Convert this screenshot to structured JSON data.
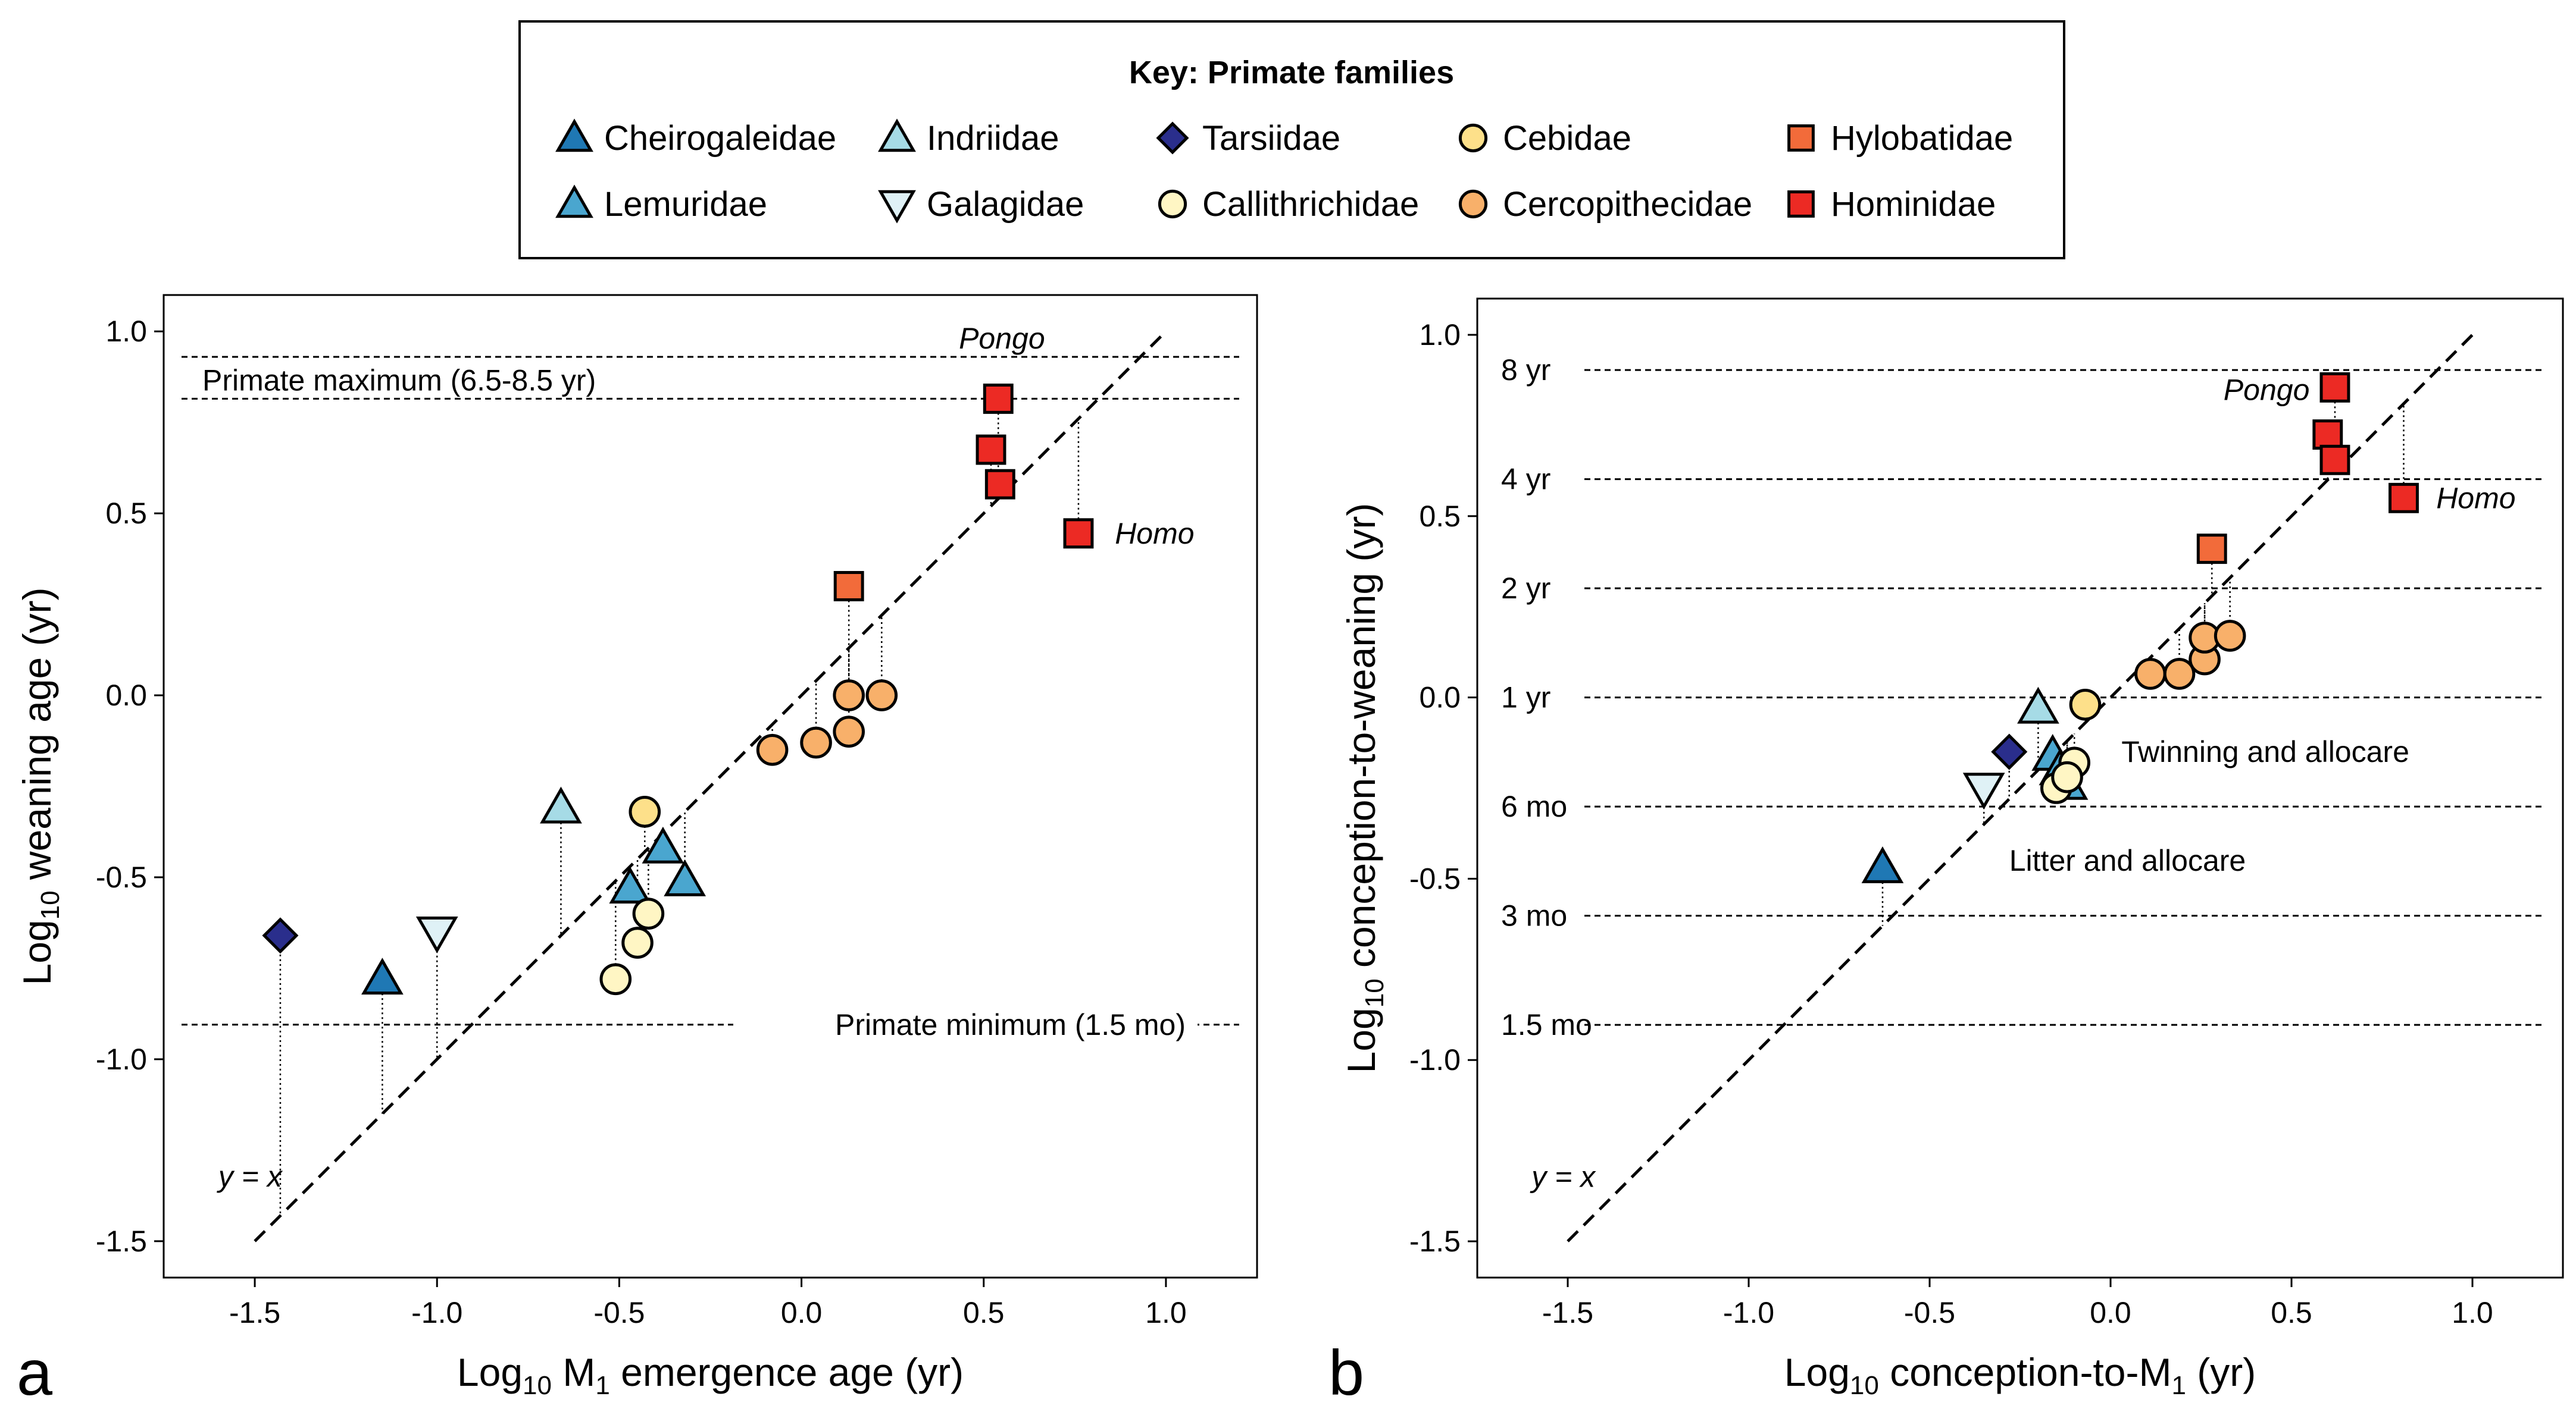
{
  "legend": {
    "title": "Key:  Primate families",
    "entries": [
      {
        "name": "Cheirogaleidae",
        "marker": "triangle-up",
        "color": "#1f78b4"
      },
      {
        "name": "Indriidae",
        "marker": "triangle-up",
        "color": "#a6dbe6"
      },
      {
        "name": "Tarsiidae",
        "marker": "diamond",
        "color": "#2a2e8c"
      },
      {
        "name": "Cebidae",
        "marker": "circle",
        "color": "#fde08a"
      },
      {
        "name": "Hylobatidae",
        "marker": "square",
        "color": "#f26b3a"
      },
      {
        "name": "Lemuridae",
        "marker": "triangle-up",
        "color": "#4aa6cf"
      },
      {
        "name": "Galagidae",
        "marker": "triangle-down",
        "color": "#dff1f6"
      },
      {
        "name": "Callithrichidae",
        "marker": "circle",
        "color": "#fff6c4"
      },
      {
        "name": "Cercopithecidae",
        "marker": "circle",
        "color": "#f8b06a"
      },
      {
        "name": "Hominidae",
        "marker": "square",
        "color": "#ec2a24"
      }
    ]
  },
  "chart_data": [
    {
      "type": "scatter",
      "panel": "a",
      "xlabel": "Log10 M1 emergence age (yr)",
      "ylabel": "Log10 weaning age (yr)",
      "xlim": [
        -1.75,
        1.25
      ],
      "ylim": [
        -1.6,
        1.1
      ],
      "xticks": [
        -1.5,
        -1.0,
        -0.5,
        0.0,
        0.5,
        1.0
      ],
      "xtick_labels": [
        "-1.5",
        "-1.0",
        "-0.5",
        "0.0",
        "0.5",
        "1.0"
      ],
      "yticks": [
        -1.5,
        -1.0,
        -0.5,
        0.0,
        0.5,
        1.0
      ],
      "ytick_labels": [
        "-1.5",
        "-1.0",
        "-0.5",
        "0.0",
        "0.5",
        "1.0"
      ],
      "identity_line": {
        "from": -1.5,
        "to": 1.0,
        "label": "y = x"
      },
      "hlines": [
        {
          "y": 0.93,
          "label": ""
        },
        {
          "y": 0.815,
          "label": "Primate maximum (6.5-8.5 yr)"
        },
        {
          "y": -0.905,
          "label": "Primate minimum (1.5 mo)"
        }
      ],
      "annotations": [
        "Pongo",
        "Homo"
      ],
      "points": [
        {
          "family": "Tarsiidae",
          "x": -1.43,
          "y": -0.66
        },
        {
          "family": "Cheirogaleidae",
          "x": -1.15,
          "y": -0.78
        },
        {
          "family": "Galagidae",
          "x": -1.0,
          "y": -0.65
        },
        {
          "family": "Indriidae",
          "x": -0.66,
          "y": -0.31
        },
        {
          "family": "Lemuridae",
          "x": -0.47,
          "y": -0.53
        },
        {
          "family": "Lemuridae",
          "x": -0.38,
          "y": -0.42
        },
        {
          "family": "Lemuridae",
          "x": -0.32,
          "y": -0.51
        },
        {
          "family": "Cebidae",
          "x": -0.43,
          "y": -0.32
        },
        {
          "family": "Callithrichidae",
          "x": -0.51,
          "y": -0.78
        },
        {
          "family": "Callithrichidae",
          "x": -0.45,
          "y": -0.68
        },
        {
          "family": "Callithrichidae",
          "x": -0.42,
          "y": -0.6
        },
        {
          "family": "Cercopithecidae",
          "x": -0.08,
          "y": -0.15
        },
        {
          "family": "Cercopithecidae",
          "x": 0.04,
          "y": -0.13
        },
        {
          "family": "Cercopithecidae",
          "x": 0.13,
          "y": -0.1
        },
        {
          "family": "Cercopithecidae",
          "x": 0.13,
          "y": 0.0
        },
        {
          "family": "Cercopithecidae",
          "x": 0.22,
          "y": 0.0
        },
        {
          "family": "Hylobatidae",
          "x": 0.13,
          "y": 0.3
        },
        {
          "family": "Hominidae",
          "x": 0.54,
          "y": 0.815
        },
        {
          "family": "Hominidae",
          "x": 0.52,
          "y": 0.675
        },
        {
          "family": "Hominidae",
          "x": 0.545,
          "y": 0.58
        },
        {
          "family": "Hominidae",
          "x": 0.76,
          "y": 0.445
        }
      ]
    },
    {
      "type": "scatter",
      "panel": "b",
      "xlabel": "Log10 conception-to-M1 (yr)",
      "ylabel": "Log10 conception-to-weaning (yr)",
      "xlim": [
        -1.75,
        1.25
      ],
      "ylim": [
        -1.6,
        1.1
      ],
      "xticks": [
        -1.5,
        -1.0,
        -0.5,
        0.0,
        0.5,
        1.0
      ],
      "xtick_labels": [
        "-1.5",
        "-1.0",
        "-0.5",
        "0.0",
        "0.5",
        "1.0"
      ],
      "yticks": [
        -1.5,
        -1.0,
        -0.5,
        0.0,
        0.5,
        1.0
      ],
      "ytick_labels": [
        "-1.5",
        "-1.0",
        "-0.5",
        "0.0",
        "0.5",
        "1.0"
      ],
      "identity_line": {
        "from": -1.5,
        "to": 1.0,
        "label": "y = x"
      },
      "hlines": [
        {
          "y": 0.903,
          "label": "8 yr"
        },
        {
          "y": 0.602,
          "label": "4 yr"
        },
        {
          "y": 0.301,
          "label": "2 yr"
        },
        {
          "y": 0.0,
          "label": "1 yr"
        },
        {
          "y": -0.301,
          "label": "6 mo"
        },
        {
          "y": -0.602,
          "label": "3 mo"
        },
        {
          "y": -0.903,
          "label": "1.5 mo"
        }
      ],
      "annotations": [
        "Pongo",
        "Homo",
        "Twinning and allocare",
        "Litter and allocare"
      ],
      "points": [
        {
          "family": "Cheirogaleidae",
          "x": -0.63,
          "y": -0.47
        },
        {
          "family": "Galagidae",
          "x": -0.35,
          "y": -0.25
        },
        {
          "family": "Tarsiidae",
          "x": -0.28,
          "y": -0.15
        },
        {
          "family": "Indriidae",
          "x": -0.2,
          "y": -0.03
        },
        {
          "family": "Lemuridae",
          "x": -0.16,
          "y": -0.16
        },
        {
          "family": "Lemuridae",
          "x": -0.14,
          "y": -0.2
        },
        {
          "family": "Lemuridae",
          "x": -0.12,
          "y": -0.24
        },
        {
          "family": "Cebidae",
          "x": -0.07,
          "y": -0.02
        },
        {
          "family": "Callithrichidae",
          "x": -0.1,
          "y": -0.18
        },
        {
          "family": "Callithrichidae",
          "x": -0.15,
          "y": -0.25
        },
        {
          "family": "Callithrichidae",
          "x": -0.12,
          "y": -0.22
        },
        {
          "family": "Cercopithecidae",
          "x": 0.11,
          "y": 0.065
        },
        {
          "family": "Cercopithecidae",
          "x": 0.19,
          "y": 0.065
        },
        {
          "family": "Cercopithecidae",
          "x": 0.26,
          "y": 0.105
        },
        {
          "family": "Cercopithecidae",
          "x": 0.26,
          "y": 0.165
        },
        {
          "family": "Cercopithecidae",
          "x": 0.33,
          "y": 0.17
        },
        {
          "family": "Hylobatidae",
          "x": 0.28,
          "y": 0.41
        },
        {
          "family": "Hominidae",
          "x": 0.62,
          "y": 0.855
        },
        {
          "family": "Hominidae",
          "x": 0.6,
          "y": 0.725
        },
        {
          "family": "Hominidae",
          "x": 0.62,
          "y": 0.655
        },
        {
          "family": "Hominidae",
          "x": 0.81,
          "y": 0.55
        }
      ]
    }
  ]
}
